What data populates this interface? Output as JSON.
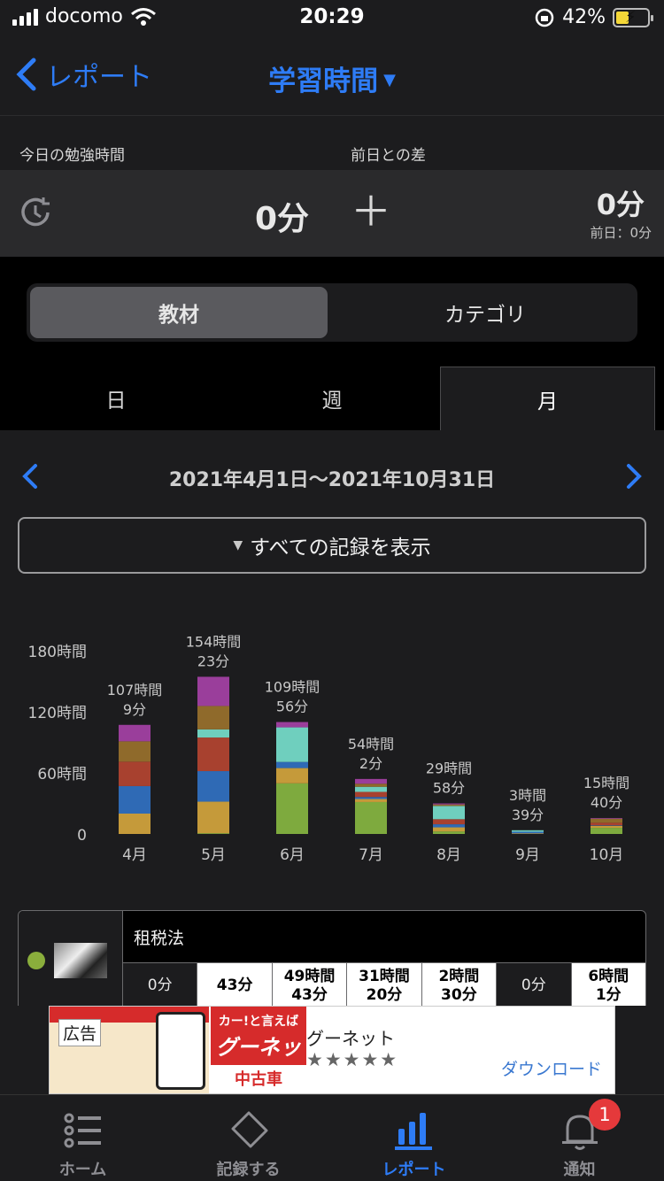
{
  "status": {
    "carrier": "docomo",
    "time": "20:29",
    "battery": "42%"
  },
  "nav": {
    "back_label": "レポート",
    "title": "学習時間"
  },
  "today": {
    "label": "今日の勉強時間",
    "diff_label": "前日との差",
    "value": "0分",
    "diff_value": "0分",
    "prev_day": "前日：0分"
  },
  "segment": {
    "items": [
      "教材",
      "カテゴリ"
    ],
    "selected": "教材"
  },
  "period_tabs": {
    "items": [
      "日",
      "週",
      "月"
    ],
    "selected": "月"
  },
  "range": "2021年4月1日〜2021年10月31日",
  "filter_label": "すべての記録を表示",
  "chart_data": {
    "type": "bar",
    "stacked": true,
    "categories": [
      "4月",
      "5月",
      "6月",
      "7月",
      "8月",
      "9月",
      "10月"
    ],
    "y_ticks": [
      "0",
      "60時間",
      "120時間",
      "180時間"
    ],
    "ylim": [
      0,
      180
    ],
    "totals": [
      107.15,
      154.38,
      109.93,
      54.03,
      29.97,
      3.65,
      15.67
    ],
    "total_labels": [
      [
        "107時間",
        "9分"
      ],
      [
        "154時間",
        "23分"
      ],
      [
        "109時間",
        "56分"
      ],
      [
        "54時間",
        "2分"
      ],
      [
        "29時間",
        "58分"
      ],
      [
        "3時間",
        "39分"
      ],
      [
        "15時間",
        "40分"
      ]
    ],
    "series": [
      {
        "color": "#7eaa3e",
        "values": [
          0,
          0.72,
          49.72,
          31.33,
          2.5,
          0,
          6.02
        ]
      },
      {
        "color": "#c59a3a",
        "values": [
          20,
          31,
          15,
          3,
          4,
          0.6,
          2
        ]
      },
      {
        "color": "#2f6ab5",
        "values": [
          27,
          30,
          6,
          2,
          3,
          1.6,
          0.5
        ]
      },
      {
        "color": "#a8412f",
        "values": [
          24,
          33,
          0,
          5,
          5,
          0,
          2.5
        ]
      },
      {
        "color": "#6fcfbe",
        "values": [
          0,
          8,
          34,
          5,
          13,
          1.45,
          0
        ]
      },
      {
        "color": "#8f6a2b",
        "values": [
          20,
          23,
          0,
          3,
          1.5,
          0,
          4
        ]
      },
      {
        "color": "#9a3e9b",
        "values": [
          16.15,
          28.66,
          5.21,
          4.7,
          0.97,
          0,
          0.65
        ]
      }
    ]
  },
  "table": {
    "name": "租税法",
    "cells": [
      "0分",
      "43分",
      "49時間\n43分",
      "31時間\n20分",
      "2時間\n30分",
      "0分",
      "6時間\n1分"
    ],
    "dark_cells": [
      true,
      false,
      false,
      false,
      false,
      true,
      false
    ]
  },
  "ad": {
    "label": "広告",
    "name": "グーネット",
    "stars": "★★★★★",
    "cta": "ダウンロード",
    "logo_top": "カー!と言えば",
    "logo_mid": "グーネット",
    "logo_bottom": "中古車"
  },
  "tabbar": {
    "items": [
      "ホーム",
      "記録する",
      "レポート",
      "通知"
    ],
    "selected": "レポート",
    "badge": "1"
  },
  "colors": {
    "accent": "#2e7cf6",
    "background": "#000000",
    "panel": "#1c1c1e"
  }
}
